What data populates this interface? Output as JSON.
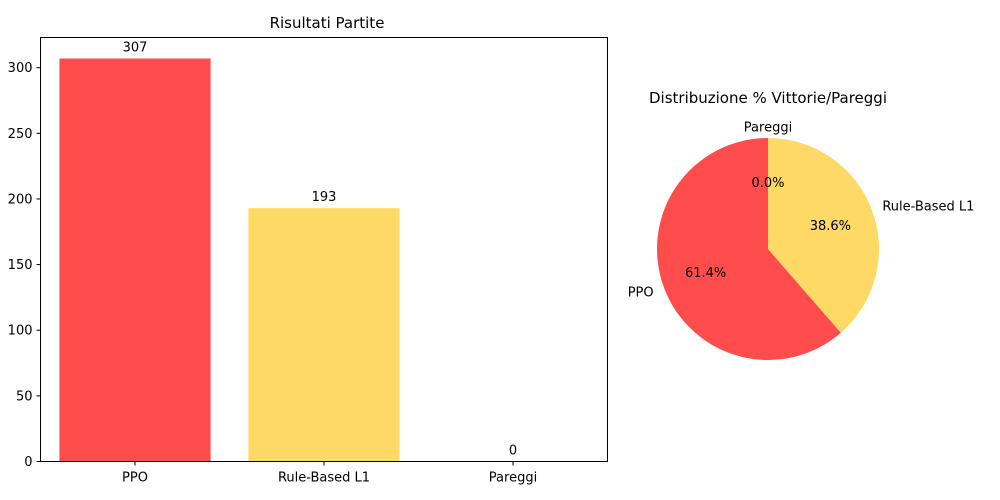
{
  "chart_data": [
    {
      "type": "bar",
      "title": "Risultati Partite",
      "xlabel": "",
      "ylabel": "",
      "categories": [
        "PPO",
        "Rule-Based L1",
        "Pareggi"
      ],
      "values": [
        307,
        193,
        0
      ],
      "value_labels": [
        "307",
        "193",
        "0"
      ],
      "colors": [
        "#ff4d4d",
        "#ffd966",
        "#ffd966"
      ],
      "ylim": [
        0,
        323
      ],
      "yticks": [
        0,
        50,
        100,
        150,
        200,
        250,
        300
      ],
      "ytick_labels": [
        "0",
        "50",
        "100",
        "150",
        "200",
        "250",
        "300"
      ],
      "grid": false
    },
    {
      "type": "pie",
      "title": "Distribuzione % Vittorie/Pareggi",
      "labels": [
        "PPO",
        "Rule-Based L1",
        "Pareggi"
      ],
      "values": [
        307,
        193,
        0
      ],
      "percent_labels": [
        "61.4%",
        "38.6%",
        "0.0%"
      ],
      "colors": [
        "#ff4d4d",
        "#ffd966",
        "#a6a6a6"
      ],
      "startangle": 90
    }
  ]
}
